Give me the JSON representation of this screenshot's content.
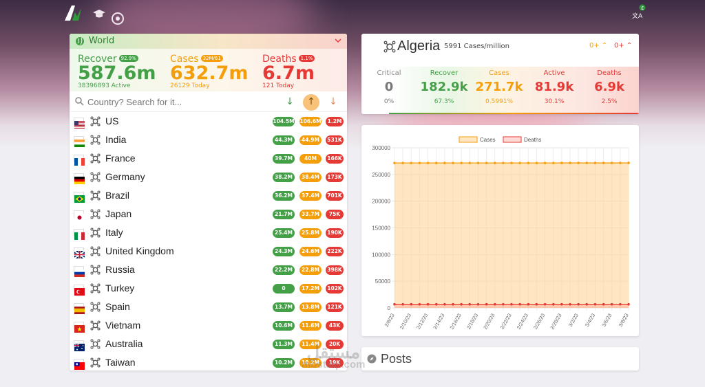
{
  "world": {
    "title": "World",
    "recover": {
      "label": "Recover",
      "badge": "92.9%",
      "value": "587.6m",
      "sub": "38396893 Active"
    },
    "cases": {
      "label": "Cases",
      "badge": "32M/61",
      "value": "632.7m",
      "sub": "26129 Today"
    },
    "deaths": {
      "label": "Deaths",
      "badge": "1.1%",
      "value": "6.7m",
      "sub": "121 Today"
    },
    "search_placeholder": "Country? Search for it...",
    "countries": [
      {
        "name": "US",
        "recovered": "104.5M",
        "cases": "106.6M",
        "deaths": "1.2M"
      },
      {
        "name": "India",
        "recovered": "44.3M",
        "cases": "44.9M",
        "deaths": "531K"
      },
      {
        "name": "France",
        "recovered": "39.7M",
        "cases": "40M",
        "deaths": "166K"
      },
      {
        "name": "Germany",
        "recovered": "38.2M",
        "cases": "38.4M",
        "deaths": "173K"
      },
      {
        "name": "Brazil",
        "recovered": "36.2M",
        "cases": "37.4M",
        "deaths": "701K"
      },
      {
        "name": "Japan",
        "recovered": "21.7M",
        "cases": "33.7M",
        "deaths": "75K"
      },
      {
        "name": "Italy",
        "recovered": "25.4M",
        "cases": "25.8M",
        "deaths": "190K"
      },
      {
        "name": "United Kingdom",
        "recovered": "24.3M",
        "cases": "24.6M",
        "deaths": "222K"
      },
      {
        "name": "Russia",
        "recovered": "22.2M",
        "cases": "22.8M",
        "deaths": "398K"
      },
      {
        "name": "Turkey",
        "recovered": "0",
        "cases": "17.2M",
        "deaths": "102K"
      },
      {
        "name": "Spain",
        "recovered": "13.7M",
        "cases": "13.8M",
        "deaths": "121K"
      },
      {
        "name": "Vietnam",
        "recovered": "10.6M",
        "cases": "11.6M",
        "deaths": "43K"
      },
      {
        "name": "Australia",
        "recovered": "11.3M",
        "cases": "11.4M",
        "deaths": "20K"
      },
      {
        "name": "Taiwan",
        "recovered": "10.2M",
        "cases": "10.2M",
        "deaths": "19K"
      }
    ]
  },
  "algeria": {
    "name": "Algeria",
    "per_million": "5991 Cases/million",
    "toggle_cases": "0+",
    "toggle_deaths": "0+",
    "stats": [
      {
        "label": "Critical",
        "value": "0",
        "sub": "0%",
        "color": "#777777"
      },
      {
        "label": "Recover",
        "value": "182.9k",
        "sub": "67.3%",
        "color": "#43a047"
      },
      {
        "label": "Cases",
        "value": "271.7k",
        "sub": "0.5991%",
        "color": "#f59e0b"
      },
      {
        "label": "Active",
        "value": "81.9k",
        "sub": "30.1%",
        "color": "#e53935"
      },
      {
        "label": "Deaths",
        "value": "6.9k",
        "sub": "2.5%",
        "color": "#e53935"
      }
    ]
  },
  "chart_data": {
    "type": "line",
    "series": [
      {
        "name": "Cases",
        "color": "#f59e0b",
        "values": [
          271500,
          271500,
          271500,
          271500,
          271500,
          271500,
          271500,
          271500,
          271500,
          271500,
          271500,
          271500,
          271500,
          271500,
          271500,
          271500,
          271500,
          271500,
          271500,
          271500,
          271600,
          271600,
          271600,
          271600,
          271600,
          271600,
          271600,
          271600,
          271700
        ]
      },
      {
        "name": "Deaths",
        "color": "#e53935",
        "values": [
          6881,
          6881,
          6881,
          6881,
          6881,
          6881,
          6881,
          6881,
          6881,
          6881,
          6881,
          6881,
          6881,
          6881,
          6881,
          6881,
          6881,
          6881,
          6881,
          6881,
          6881,
          6881,
          6881,
          6881,
          6881,
          6881,
          6881,
          6881,
          6881
        ]
      }
    ],
    "x_ticks": [
      "2/8/23",
      "2/10/23",
      "2/12/23",
      "2/14/23",
      "2/16/23",
      "2/18/23",
      "2/20/23",
      "2/22/23",
      "2/24/23",
      "2/26/23",
      "2/28/23",
      "3/2/23",
      "3/4/23",
      "3/6/23",
      "3/8/23"
    ],
    "y_ticks": [
      "0",
      "50000",
      "100000",
      "150000",
      "200000",
      "250000",
      "300000"
    ],
    "ylim": [
      0,
      300000
    ],
    "legend_position": "top",
    "area_fill": true,
    "grid": true
  },
  "posts": {
    "title": "Posts"
  },
  "watermark": {
    "line1": "مستقل",
    "line2": "mostaql.com"
  }
}
